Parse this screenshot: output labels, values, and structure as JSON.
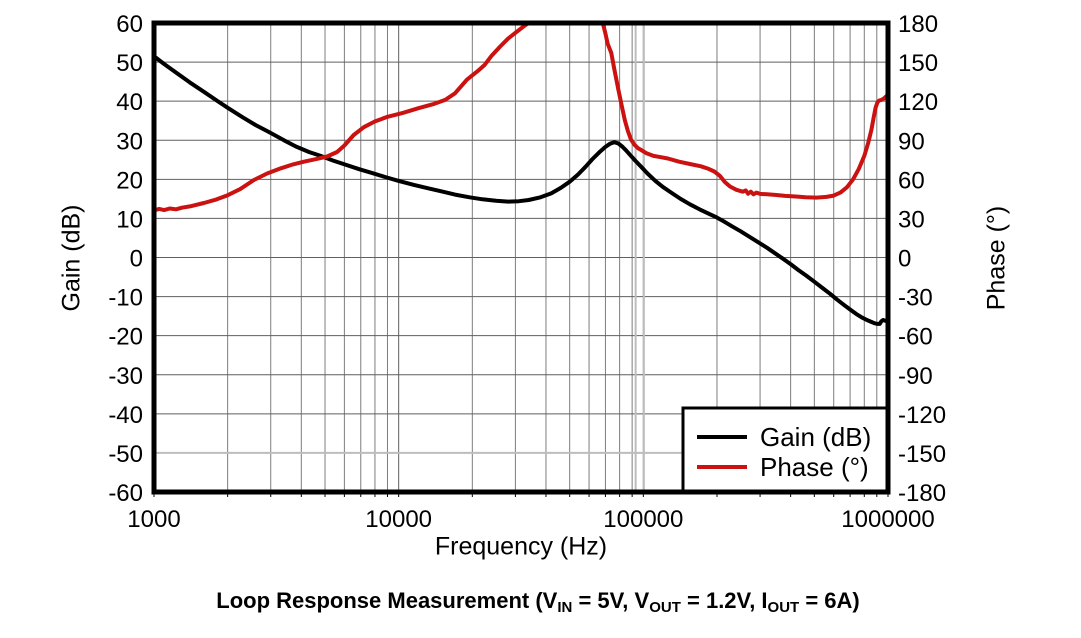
{
  "colors": {
    "background": "#ffffff",
    "text": "#000000",
    "border": "#000000",
    "grid_major": "#5f5f5f",
    "grid_minor": "#7d7d7d",
    "cursor": "#bdbdbd",
    "gain_curve": "#000000",
    "phase_curve": "#cc1111"
  },
  "caption_parts": [
    {
      "t": "Loop Response Measurement (V"
    },
    {
      "t": "IN",
      "sub": true
    },
    {
      "t": " = 5V, V"
    },
    {
      "t": "OUT",
      "sub": true
    },
    {
      "t": " = 1.2V, I"
    },
    {
      "t": "OUT",
      "sub": true
    },
    {
      "t": " = 6A)"
    }
  ],
  "legend": {
    "items": [
      {
        "label": "Gain (dB)",
        "color": "#000000"
      },
      {
        "label": "Phase (°)",
        "color": "#cc1111"
      }
    ]
  },
  "chart_data": {
    "type": "line",
    "x_axis": {
      "label": "Frequency (Hz)",
      "scale": "log",
      "min": 1000,
      "max": 1000000,
      "tick_labels": [
        "1000",
        "10000",
        "100000",
        "1000000"
      ],
      "tick_values": [
        1000,
        10000,
        100000,
        1000000
      ]
    },
    "y_left": {
      "label": "Gain (dB)",
      "min": -60,
      "max": 60,
      "tick_step": 10,
      "ticks": [
        60,
        50,
        40,
        30,
        20,
        10,
        0,
        -10,
        -20,
        -30,
        -40,
        -50,
        -60
      ]
    },
    "y_right": {
      "label": "Phase (°)",
      "min": -180,
      "max": 180,
      "tick_step": 30,
      "ticks": [
        180,
        150,
        120,
        90,
        60,
        30,
        0,
        -30,
        -60,
        -90,
        -120,
        -150,
        -180
      ]
    },
    "grid": "on",
    "legend_position": "lower right",
    "cursor_lines": {
      "vertical_hz": [
        93000,
        100500
      ],
      "horizontal_phase_deg": -150
    },
    "series": [
      {
        "name": "Gain (dB)",
        "axis": "left",
        "color": "#000000",
        "points": [
          [
            1000,
            51.5
          ],
          [
            1100,
            49.5
          ],
          [
            1250,
            47.0
          ],
          [
            1400,
            44.8
          ],
          [
            1600,
            42.4
          ],
          [
            1800,
            40.2
          ],
          [
            2000,
            38.3
          ],
          [
            2300,
            35.9
          ],
          [
            2600,
            33.9
          ],
          [
            2950,
            32.1
          ],
          [
            3400,
            30.0
          ],
          [
            3800,
            28.4
          ],
          [
            4300,
            27.0
          ],
          [
            4800,
            26.0
          ],
          [
            5400,
            24.8
          ],
          [
            6100,
            23.7
          ],
          [
            6900,
            22.6
          ],
          [
            7800,
            21.6
          ],
          [
            8800,
            20.6
          ],
          [
            10000,
            19.6
          ],
          [
            11500,
            18.6
          ],
          [
            13200,
            17.7
          ],
          [
            15000,
            16.9
          ],
          [
            17000,
            16.1
          ],
          [
            19500,
            15.4
          ],
          [
            22000,
            14.9
          ],
          [
            25000,
            14.5
          ],
          [
            28000,
            14.3
          ],
          [
            31000,
            14.4
          ],
          [
            34000,
            14.7
          ],
          [
            38000,
            15.4
          ],
          [
            42000,
            16.4
          ],
          [
            46000,
            17.8
          ],
          [
            50000,
            19.4
          ],
          [
            54000,
            21.2
          ],
          [
            58000,
            23.2
          ],
          [
            62000,
            25.2
          ],
          [
            66000,
            26.9
          ],
          [
            70000,
            28.3
          ],
          [
            73000,
            29.1
          ],
          [
            76000,
            29.5
          ],
          [
            79000,
            29.2
          ],
          [
            82000,
            28.4
          ],
          [
            85000,
            27.4
          ],
          [
            89000,
            26.0
          ],
          [
            93000,
            24.7
          ],
          [
            98000,
            23.2
          ],
          [
            104000,
            21.5
          ],
          [
            112000,
            19.6
          ],
          [
            120000,
            18.1
          ],
          [
            130000,
            16.6
          ],
          [
            142000,
            15.0
          ],
          [
            155000,
            13.6
          ],
          [
            170000,
            12.3
          ],
          [
            185000,
            11.2
          ],
          [
            200000,
            10.2
          ],
          [
            215000,
            9.1
          ],
          [
            230000,
            8.0
          ],
          [
            250000,
            6.7
          ],
          [
            270000,
            5.4
          ],
          [
            295000,
            3.9
          ],
          [
            320000,
            2.5
          ],
          [
            345000,
            1.1
          ],
          [
            370000,
            -0.2
          ],
          [
            400000,
            -1.7
          ],
          [
            430000,
            -3.2
          ],
          [
            465000,
            -4.7
          ],
          [
            500000,
            -6.2
          ],
          [
            540000,
            -7.8
          ],
          [
            580000,
            -9.3
          ],
          [
            620000,
            -10.8
          ],
          [
            660000,
            -12.1
          ],
          [
            700000,
            -13.3
          ],
          [
            740000,
            -14.4
          ],
          [
            780000,
            -15.3
          ],
          [
            820000,
            -16.0
          ],
          [
            850000,
            -16.4
          ],
          [
            880000,
            -16.8
          ],
          [
            905000,
            -17.0
          ],
          [
            925000,
            -17.0
          ],
          [
            940000,
            -16.3
          ],
          [
            955000,
            -16.0
          ],
          [
            975000,
            -16.2
          ],
          [
            1000000,
            -16.3
          ]
        ]
      },
      {
        "name": "Phase (°)",
        "axis": "right",
        "color": "#cc1111",
        "clipped_above": 180,
        "points": [
          [
            1000,
            36.2
          ],
          [
            1050,
            37.3
          ],
          [
            1100,
            36.4
          ],
          [
            1160,
            37.6
          ],
          [
            1230,
            37.0
          ],
          [
            1300,
            38.2
          ],
          [
            1400,
            39.2
          ],
          [
            1600,
            41.8
          ],
          [
            1800,
            44.6
          ],
          [
            2000,
            47.8
          ],
          [
            2250,
            52.5
          ],
          [
            2560,
            59.5
          ],
          [
            2900,
            64.5
          ],
          [
            3300,
            68.5
          ],
          [
            3700,
            71.5
          ],
          [
            4100,
            73.5
          ],
          [
            4600,
            75.5
          ],
          [
            5100,
            77.5
          ],
          [
            5600,
            81.0
          ],
          [
            6000,
            86.0
          ],
          [
            6550,
            94.0
          ],
          [
            7200,
            100.0
          ],
          [
            8000,
            104.5
          ],
          [
            9000,
            108.0
          ],
          [
            10400,
            111.0
          ],
          [
            12000,
            114.5
          ],
          [
            14000,
            118.0
          ],
          [
            15500,
            121.0
          ],
          [
            17000,
            126.0
          ],
          [
            19000,
            136.5
          ],
          [
            21000,
            143.0
          ],
          [
            22500,
            148.0
          ],
          [
            24000,
            155.0
          ],
          [
            26000,
            162.0
          ],
          [
            28000,
            168.0
          ],
          [
            30000,
            172.5
          ],
          [
            33000,
            178.5
          ],
          [
            36000,
            183.0
          ],
          [
            40000,
            196.0
          ],
          [
            50000,
            210.0
          ],
          [
            60000,
            196.0
          ],
          [
            66000,
            184.0
          ],
          [
            68500,
            179.0
          ],
          [
            70000,
            172.0
          ],
          [
            71500,
            164.0
          ],
          [
            74000,
            157.0
          ],
          [
            76000,
            145.0
          ],
          [
            79000,
            129.0
          ],
          [
            81500,
            117.0
          ],
          [
            84000,
            105.5
          ],
          [
            86500,
            97.0
          ],
          [
            89000,
            90.5
          ],
          [
            92000,
            86.5
          ],
          [
            95000,
            84.0
          ],
          [
            98000,
            82.5
          ],
          [
            103000,
            80.0
          ],
          [
            110000,
            78.0
          ],
          [
            118000,
            77.0
          ],
          [
            126000,
            76.0
          ],
          [
            140000,
            73.5
          ],
          [
            155000,
            71.8
          ],
          [
            172000,
            70.0
          ],
          [
            185000,
            68.0
          ],
          [
            195000,
            66.0
          ],
          [
            206000,
            62.5
          ],
          [
            215000,
            58.0
          ],
          [
            226000,
            54.5
          ],
          [
            240000,
            52.0
          ],
          [
            255000,
            50.5
          ],
          [
            262000,
            51.5
          ],
          [
            268000,
            49.0
          ],
          [
            275000,
            50.5
          ],
          [
            282000,
            48.5
          ],
          [
            290000,
            49.8
          ],
          [
            300000,
            48.8
          ],
          [
            320000,
            48.5
          ],
          [
            350000,
            48.0
          ],
          [
            380000,
            47.3
          ],
          [
            420000,
            46.8
          ],
          [
            460000,
            46.3
          ],
          [
            510000,
            46.0
          ],
          [
            560000,
            46.5
          ],
          [
            600000,
            47.5
          ],
          [
            640000,
            50.0
          ],
          [
            680000,
            54.0
          ],
          [
            720000,
            60.0
          ],
          [
            760000,
            68.0
          ],
          [
            800000,
            78.0
          ],
          [
            830000,
            88.0
          ],
          [
            855000,
            98.0
          ],
          [
            875000,
            108.0
          ],
          [
            890000,
            115.0
          ],
          [
            905000,
            119.0
          ],
          [
            920000,
            120.5
          ],
          [
            940000,
            121.0
          ],
          [
            960000,
            122.0
          ],
          [
            980000,
            123.5
          ],
          [
            1000000,
            125.0
          ]
        ]
      }
    ]
  }
}
